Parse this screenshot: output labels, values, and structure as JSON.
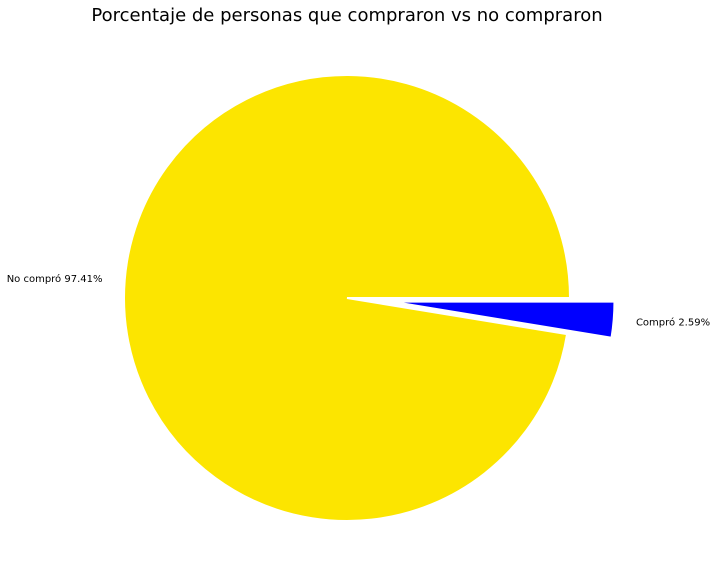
{
  "chart_data": {
    "type": "pie",
    "title": "Porcentaje de personas que compraron vs no compraron",
    "slices": [
      {
        "label": "Compró 2.59%",
        "name": "Compró",
        "value": 2.59,
        "color": "#0000ff",
        "exploded": true
      },
      {
        "label": "No compró 97.41%",
        "name": "No compró",
        "value": 97.41,
        "color": "#fce500",
        "exploded": false
      }
    ],
    "start_angle_deg": 0,
    "direction": "clockwise",
    "legend": "none"
  }
}
